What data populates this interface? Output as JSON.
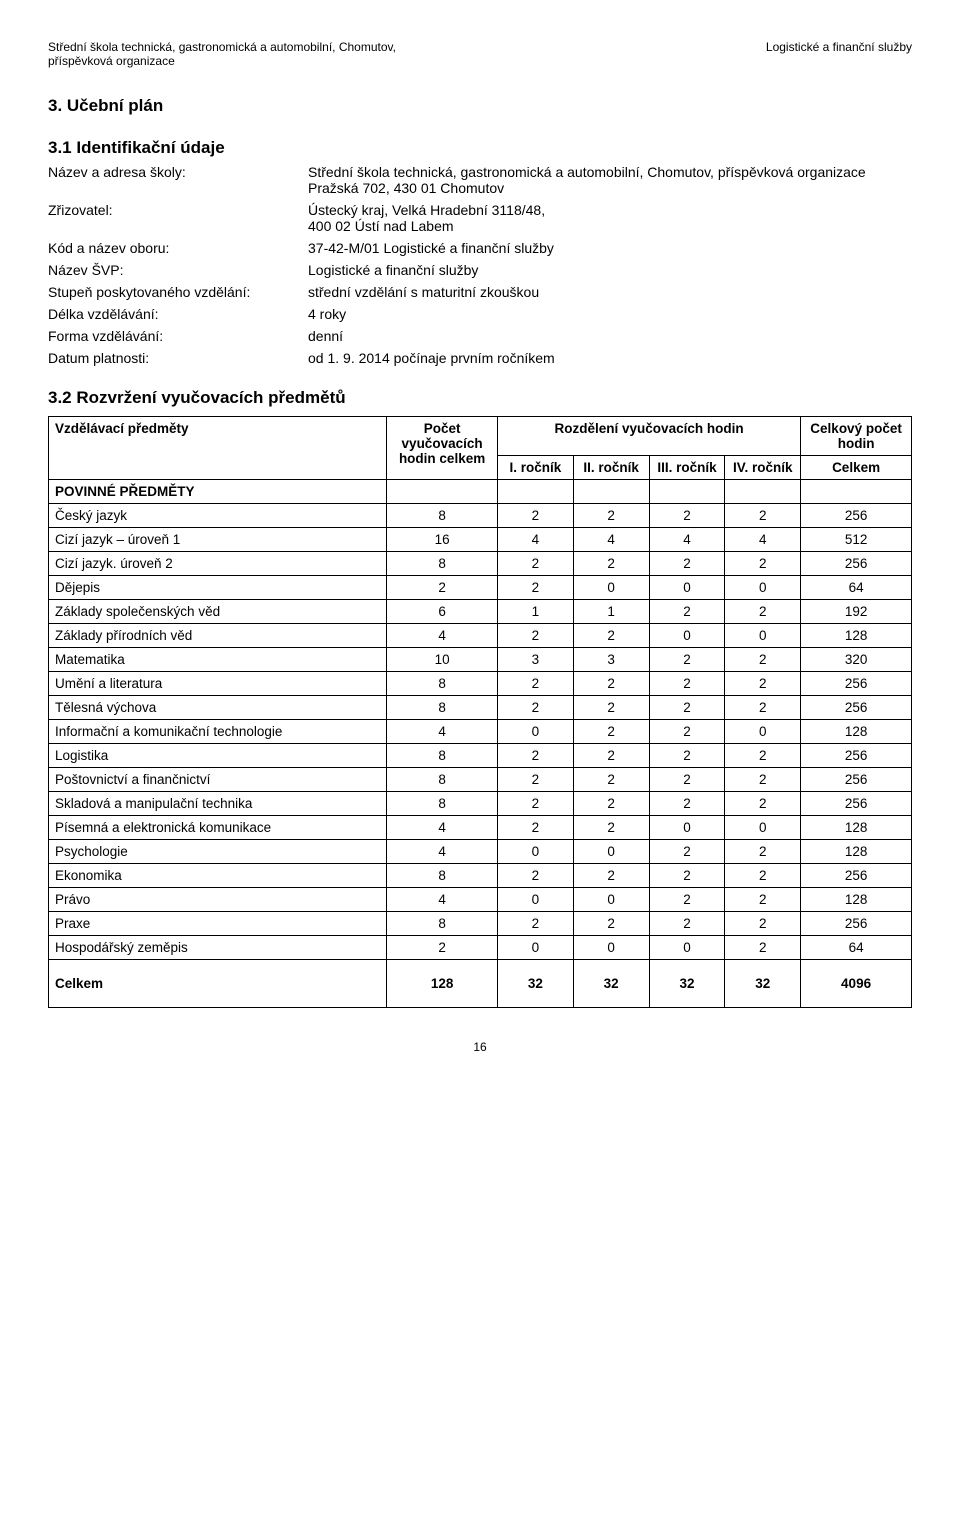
{
  "header": {
    "left_line1": "Střední škola technická, gastronomická a automobilní, Chomutov,",
    "left_line2": "příspěvková organizace",
    "right": "Logistické a finanční služby"
  },
  "sections": {
    "s1": "3.   Učební plán",
    "s1_1": "3.1  Identifikační údaje",
    "s1_2": "3.2  Rozvržení vyučovacích předmětů"
  },
  "info": {
    "rows": [
      {
        "label": "Název a adresa školy:",
        "value": "Střední škola technická, gastronomická a automobilní, Chomutov, příspěvková organizace\nPražská 702, 430 01 Chomutov"
      },
      {
        "label": "Zřizovatel:",
        "value": "Ústecký kraj, Velká Hradební 3118/48,\n400 02 Ústí nad Labem"
      },
      {
        "label": "Kód a název oboru:",
        "value": "37-42-M/01 Logistické a finanční služby"
      },
      {
        "label": "Název ŠVP:",
        "value": "Logistické a finanční služby"
      },
      {
        "label": "Stupeň poskytovaného vzdělání:",
        "value": "střední vzdělání s maturitní zkouškou"
      },
      {
        "label": "Délka vzdělávání:",
        "value": "4 roky"
      },
      {
        "label": "Forma vzdělávání:",
        "value": "denní"
      },
      {
        "label": "Datum platnosti:",
        "value": "od 1. 9. 2014 počínaje prvním ročníkem"
      }
    ]
  },
  "table": {
    "headers": {
      "subject": "Vzdělávací předměty",
      "total_hours": "Počet vyučovacích hodin celkem",
      "distribution": "Rozdělení vyučovacích hodin",
      "grand_total": "Celkový počet hodin",
      "i": "I. ročník",
      "ii": "II. ročník",
      "iii": "III. ročník",
      "iv": "IV. ročník",
      "celkem": "Celkem"
    },
    "section_rows": {
      "povinne": "POVINNÉ PŘEDMĚTY"
    },
    "rows": [
      {
        "name": "Český jazyk",
        "total": "8",
        "i": "2",
        "ii": "2",
        "iii": "2",
        "iv": "2",
        "sum": "256"
      },
      {
        "name": "Cizí jazyk – úroveň 1",
        "total": "16",
        "i": "4",
        "ii": "4",
        "iii": "4",
        "iv": "4",
        "sum": "512"
      },
      {
        "name": "Cizí jazyk. úroveň 2",
        "total": "8",
        "i": "2",
        "ii": "2",
        "iii": "2",
        "iv": "2",
        "sum": "256"
      },
      {
        "name": "Dějepis",
        "total": "2",
        "i": "2",
        "ii": "0",
        "iii": "0",
        "iv": "0",
        "sum": "64"
      },
      {
        "name": "Základy společenských věd",
        "total": "6",
        "i": "1",
        "ii": "1",
        "iii": "2",
        "iv": "2",
        "sum": "192"
      },
      {
        "name": "Základy přírodních věd",
        "total": "4",
        "i": "2",
        "ii": "2",
        "iii": "0",
        "iv": "0",
        "sum": "128"
      },
      {
        "name": "Matematika",
        "total": "10",
        "i": "3",
        "ii": "3",
        "iii": "2",
        "iv": "2",
        "sum": "320"
      },
      {
        "name": "Umění a literatura",
        "total": "8",
        "i": "2",
        "ii": "2",
        "iii": "2",
        "iv": "2",
        "sum": "256"
      },
      {
        "name": "Tělesná výchova",
        "total": "8",
        "i": "2",
        "ii": "2",
        "iii": "2",
        "iv": "2",
        "sum": "256"
      },
      {
        "name": "Informační a komunikační technologie",
        "total": "4",
        "i": "0",
        "ii": "2",
        "iii": "2",
        "iv": "0",
        "sum": "128"
      },
      {
        "name": "Logistika",
        "total": "8",
        "i": "2",
        "ii": "2",
        "iii": "2",
        "iv": "2",
        "sum": "256"
      },
      {
        "name": "Poštovnictví a finančnictví",
        "total": "8",
        "i": "2",
        "ii": "2",
        "iii": "2",
        "iv": "2",
        "sum": "256"
      },
      {
        "name": "Skladová a manipulační technika",
        "total": "8",
        "i": "2",
        "ii": "2",
        "iii": "2",
        "iv": "2",
        "sum": "256"
      },
      {
        "name": "Písemná a elektronická komunikace",
        "total": "4",
        "i": "2",
        "ii": "2",
        "iii": "0",
        "iv": "0",
        "sum": "128"
      },
      {
        "name": "Psychologie",
        "total": "4",
        "i": "0",
        "ii": "0",
        "iii": "2",
        "iv": "2",
        "sum": "128"
      },
      {
        "name": "Ekonomika",
        "total": "8",
        "i": "2",
        "ii": "2",
        "iii": "2",
        "iv": "2",
        "sum": "256"
      },
      {
        "name": "Právo",
        "total": "4",
        "i": "0",
        "ii": "0",
        "iii": "2",
        "iv": "2",
        "sum": "128"
      },
      {
        "name": "Praxe",
        "total": "8",
        "i": "2",
        "ii": "2",
        "iii": "2",
        "iv": "2",
        "sum": "256"
      },
      {
        "name": "Hospodářský zeměpis",
        "total": "2",
        "i": "0",
        "ii": "0",
        "iii": "0",
        "iv": "2",
        "sum": "64"
      }
    ],
    "totals": {
      "label": "Celkem",
      "total": "128",
      "i": "32",
      "ii": "32",
      "iii": "32",
      "iv": "32",
      "sum": "4096"
    }
  },
  "page_number": "16"
}
